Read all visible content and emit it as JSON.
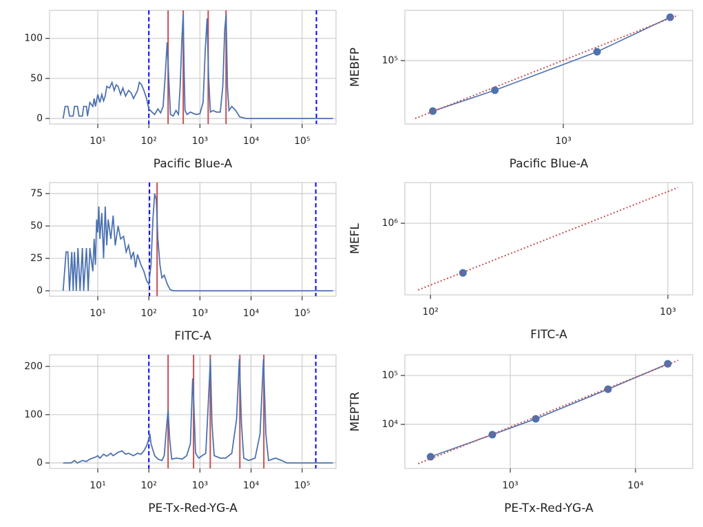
{
  "chart_data": [
    {
      "type": "line",
      "x_label": "Pacific Blue-A",
      "xscale": "log",
      "grid": true,
      "xlim": [
        1.14,
        460000
      ],
      "ylim": [
        -6.9,
        135
      ],
      "xticks": [
        {
          "value": 10,
          "label": "10¹"
        },
        {
          "value": 100,
          "label": "10²"
        },
        {
          "value": 1000,
          "label": "10³"
        },
        {
          "value": 10000,
          "label": "10⁴"
        },
        {
          "value": 100000,
          "label": "10⁵"
        }
      ],
      "yticks": [
        0,
        50,
        100
      ],
      "x": [
        2.1,
        2.3,
        2.6,
        2.8,
        3.3,
        3.5,
        4.0,
        4.3,
        5.0,
        5.3,
        6.0,
        6.3,
        7,
        8,
        8.5,
        9,
        10,
        11,
        12,
        13,
        14,
        15,
        17,
        19,
        21,
        23,
        25,
        28,
        31,
        35,
        40,
        45,
        50,
        55,
        60,
        65,
        72,
        80,
        90,
        100,
        115,
        130,
        150,
        170,
        190,
        210,
        228,
        245,
        265,
        300,
        340,
        380,
        410,
        440,
        470,
        490,
        510,
        560,
        650,
        760,
        850,
        1000,
        1150,
        1270,
        1380,
        1480,
        1600,
        1800,
        2100,
        2500,
        2800,
        3050,
        3250,
        3450,
        3700,
        4200,
        5000,
        6000,
        8000,
        400000
      ],
      "series": [
        {
          "color": "#4c72b0",
          "values": [
            0,
            15,
            15,
            3,
            3,
            15,
            15,
            3,
            3,
            15,
            15,
            3,
            20,
            15,
            25,
            15,
            30,
            20,
            30,
            22,
            28,
            40,
            38,
            45,
            35,
            42,
            40,
            30,
            38,
            28,
            35,
            32,
            25,
            30,
            35,
            45,
            42,
            35,
            25,
            12,
            8,
            5,
            12,
            7,
            15,
            55,
            95,
            50,
            5,
            3,
            10,
            5,
            40,
            95,
            130,
            60,
            10,
            5,
            8,
            6,
            5,
            6,
            20,
            85,
            125,
            50,
            8,
            10,
            8,
            8,
            40,
            110,
            130,
            40,
            10,
            15,
            10,
            2,
            0,
            0
          ]
        }
      ],
      "vlines": [
        {
          "color": "#0000ff",
          "style": "dashed",
          "x": [
            100,
            190000
          ]
        },
        {
          "color": "#c44e52",
          "style": "solid",
          "x": [
            238,
            471,
            1450,
            3240
          ]
        }
      ]
    },
    {
      "type": "scatter",
      "x_label": "Pacific Blue-A",
      "y_label": "MEBFP",
      "xscale": "log",
      "yscale": "log",
      "grid": true,
      "xlim": [
        175,
        4150
      ],
      "ylim": [
        17100,
        406000
      ],
      "xticks": [
        {
          "value": 1000,
          "label": "10³"
        }
      ],
      "yticks": [
        {
          "value": 100000,
          "label": "10⁵"
        }
      ],
      "series": [
        {
          "color": "#4c72b0",
          "style": "solid",
          "marker": true,
          "x": [
            238,
            471,
            1450,
            3240
          ],
          "values": [
            24500,
            43800,
            128000,
            335000
          ]
        },
        {
          "color": "#c44e52",
          "style": "dotted",
          "marker": false,
          "x": [
            196,
            3540
          ],
          "values": [
            19950,
            355000
          ]
        }
      ]
    },
    {
      "type": "line",
      "x_label": "FITC-A",
      "xscale": "log",
      "grid": true,
      "xlim": [
        1.14,
        460000
      ],
      "ylim": [
        -4.2,
        83.5
      ],
      "xticks": [
        {
          "value": 10,
          "label": "10¹"
        },
        {
          "value": 100,
          "label": "10²"
        },
        {
          "value": 1000,
          "label": "10³"
        },
        {
          "value": 10000,
          "label": "10⁴"
        },
        {
          "value": 100000,
          "label": "10⁵"
        }
      ],
      "yticks": [
        0,
        25,
        50,
        75
      ],
      "x": [
        2.1,
        2.4,
        2.6,
        2.8,
        3.1,
        3.3,
        3.5,
        3.8,
        4.1,
        4.5,
        5,
        5.3,
        6,
        6.5,
        7,
        8,
        8.5,
        9,
        9.5,
        10,
        10.5,
        11,
        12,
        13,
        14,
        15,
        16,
        18,
        20,
        22,
        25,
        28,
        32,
        36,
        40,
        45,
        50,
        55,
        60,
        70,
        80,
        90,
        100,
        110,
        120,
        130,
        140,
        150,
        165,
        180,
        200,
        230,
        260,
        300,
        400000
      ],
      "series": [
        {
          "color": "#4c72b0",
          "values": [
            0,
            30,
            30,
            0,
            30,
            0,
            30,
            0,
            33,
            0,
            33,
            0,
            33,
            0,
            33,
            15,
            40,
            20,
            55,
            45,
            65,
            40,
            60,
            25,
            65,
            35,
            55,
            40,
            58,
            35,
            50,
            40,
            42,
            30,
            35,
            25,
            30,
            18,
            28,
            20,
            15,
            8,
            5,
            20,
            55,
            75,
            70,
            40,
            20,
            10,
            12,
            5,
            1,
            0,
            0
          ]
        }
      ],
      "vlines": [
        {
          "color": "#0000ff",
          "style": "dashed",
          "x": [
            103,
            185000
          ]
        },
        {
          "color": "#c44e52",
          "style": "solid",
          "x": [
            145
          ]
        }
      ]
    },
    {
      "type": "scatter",
      "x_label": "FITC-A",
      "y_label": "MEFL",
      "xscale": "log",
      "yscale": "log",
      "grid": true,
      "xlim": [
        78,
        1272
      ],
      "ylim": [
        172000,
        2720000
      ],
      "xticks": [
        {
          "value": 100,
          "label": "10²"
        },
        {
          "value": 1000,
          "label": "10³"
        }
      ],
      "yticks": [
        {
          "value": 1000000,
          "label": "10⁶"
        }
      ],
      "series": [
        {
          "color": "#4c72b0",
          "style": "solid",
          "marker": true,
          "x": [
            137
          ],
          "values": [
            295000
          ]
        },
        {
          "color": "#c44e52",
          "style": "dotted",
          "marker": false,
          "x": [
            88.7,
            1104
          ],
          "values": [
            194000,
            2410000
          ]
        }
      ]
    },
    {
      "type": "line",
      "x_label": "PE-Tx-Red-YG-A",
      "xscale": "log",
      "grid": true,
      "xlim": [
        1.14,
        460000
      ],
      "ylim": [
        -11.4,
        224
      ],
      "xticks": [
        {
          "value": 10,
          "label": "10¹"
        },
        {
          "value": 100,
          "label": "10²"
        },
        {
          "value": 1000,
          "label": "10³"
        },
        {
          "value": 10000,
          "label": "10⁴"
        },
        {
          "value": 100000,
          "label": "10⁵"
        }
      ],
      "yticks": [
        0,
        100,
        200
      ],
      "x": [
        2.1,
        3,
        3.5,
        4,
        5,
        6,
        7,
        8,
        9,
        10,
        11,
        13,
        15,
        18,
        20,
        25,
        30,
        35,
        40,
        50,
        60,
        70,
        80,
        90,
        100,
        105,
        110,
        130,
        150,
        180,
        200,
        220,
        238,
        255,
        280,
        350,
        450,
        550,
        650,
        720,
        760,
        820,
        950,
        1100,
        1300,
        1450,
        1600,
        1720,
        1900,
        2500,
        3200,
        4200,
        5200,
        5900,
        6500,
        7200,
        9000,
        12000,
        15000,
        17500,
        19500,
        22000,
        30000,
        40000,
        50000,
        400000
      ],
      "series": [
        {
          "color": "#4c72b0",
          "values": [
            0,
            0,
            5,
            0,
            5,
            3,
            8,
            10,
            12,
            15,
            10,
            18,
            14,
            20,
            15,
            22,
            25,
            18,
            20,
            15,
            20,
            18,
            25,
            35,
            50,
            60,
            40,
            15,
            8,
            5,
            15,
            70,
            110,
            50,
            8,
            10,
            8,
            15,
            40,
            175,
            120,
            20,
            10,
            15,
            20,
            120,
            215,
            80,
            15,
            10,
            10,
            20,
            90,
            215,
            80,
            10,
            5,
            10,
            60,
            215,
            60,
            5,
            10,
            5,
            0,
            0
          ]
        }
      ],
      "vlines": [
        {
          "color": "#0000ff",
          "style": "dashed",
          "x": [
            100,
            185000
          ]
        },
        {
          "color": "#c44e52",
          "style": "solid",
          "x": [
            238,
            750,
            1590,
            6040,
            17800
          ]
        }
      ]
    },
    {
      "type": "scatter",
      "x_label": "PE-Tx-Red-YG-A",
      "y_label": "MEPTR",
      "xscale": "log",
      "yscale": "log",
      "grid": true,
      "xlim": [
        144,
        28600
      ],
      "ylim": [
        1256,
        265000
      ],
      "xticks": [
        {
          "value": 1000,
          "label": "10³"
        },
        {
          "value": 10000,
          "label": "10⁴"
        }
      ],
      "yticks": [
        {
          "value": 10000,
          "label": "10⁴"
        },
        {
          "value": 100000,
          "label": "10⁵"
        }
      ],
      "series": [
        {
          "color": "#4c72b0",
          "style": "solid",
          "marker": true,
          "x": [
            231,
            719,
            1597,
            6030,
            18100
          ],
          "values": [
            2180,
            6150,
            12970,
            52300,
            173000
          ]
        },
        {
          "color": "#c44e52",
          "style": "dotted",
          "marker": false,
          "x": [
            184,
            21900
          ],
          "values": [
            1574,
            204000
          ]
        }
      ]
    }
  ]
}
